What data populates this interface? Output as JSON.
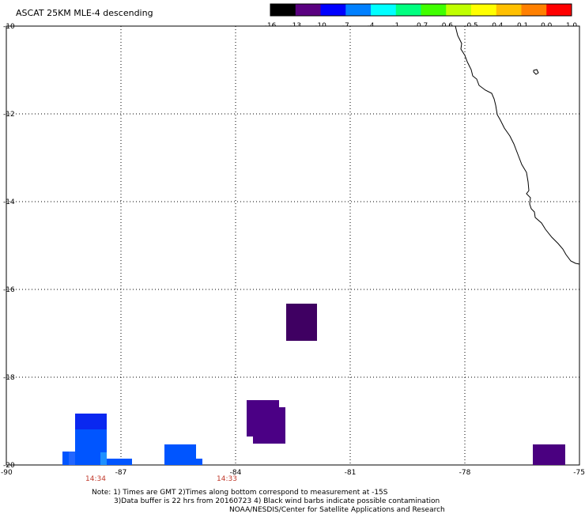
{
  "title": "ASCAT 25KM MLE-4 descending",
  "colorbar": {
    "labels": [
      "-16",
      "-13",
      "-10",
      "-7",
      "-4",
      "-1",
      "-0.7",
      "-0.6",
      "-0.5",
      "-0.4",
      "-0.1",
      "0.0",
      "1.0"
    ],
    "colors": [
      "#000000",
      "#5a0080",
      "#0000ff",
      "#0080ff",
      "#00ffff",
      "#00ff80",
      "#40ff00",
      "#c0ff00",
      "#ffff00",
      "#ffc000",
      "#ff8000",
      "#ff0000"
    ]
  },
  "map": {
    "lon_range": [
      -90,
      -75
    ],
    "lat_range": [
      -20,
      -10
    ],
    "lon_ticks": [
      "-90",
      "-87",
      "-84",
      "-81",
      "-78",
      "-75"
    ],
    "lat_ticks": [
      "-10",
      "-12",
      "-14",
      "-16",
      "-18",
      "-20"
    ],
    "gridlines": "dotted"
  },
  "pass_times": [
    "14:34",
    "14:33"
  ],
  "notes": {
    "line1": "Note: 1) Times are GMT 2)Times along bottom correspond to measurement at -15S",
    "line2": "3)Data buffer is 22 hrs from 20160723 4) Black wind barbs indicate possible contamination",
    "line3": "NOAA/NESDIS/Center for Satellite Applications and Research"
  }
}
